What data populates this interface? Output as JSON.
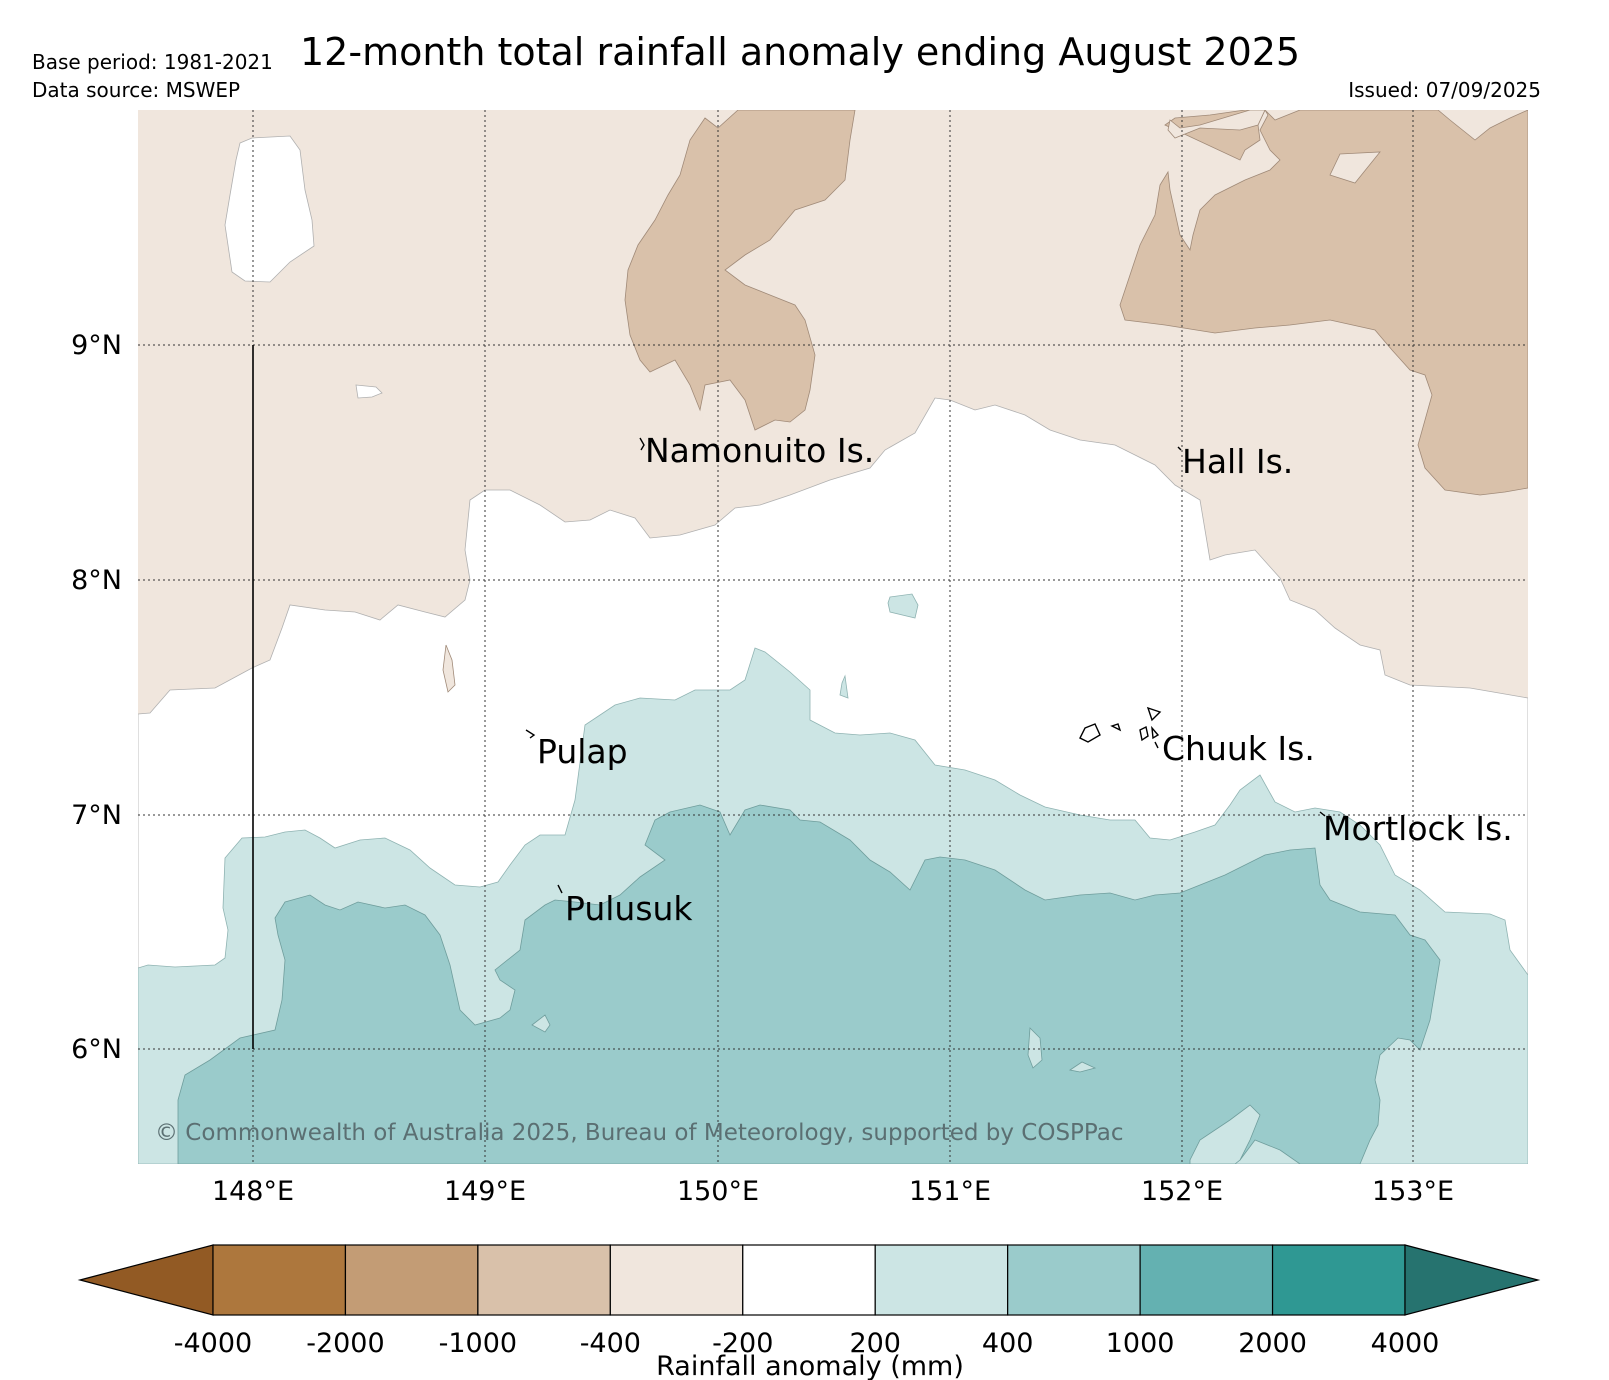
{
  "header": {
    "base_period": "Base period: 1981-2021",
    "data_source": "Data source: MSWEP",
    "title": "12-month total rainfall anomaly ending August 2025",
    "issued": "Issued: 07/09/2025"
  },
  "map": {
    "lon_labels": [
      "148°E",
      "149°E",
      "150°E",
      "151°E",
      "152°E",
      "153°E"
    ],
    "lat_labels": [
      "9°N",
      "8°N",
      "7°N",
      "6°N"
    ],
    "places": [
      {
        "key": "namonuito",
        "name": "Namonuito Is."
      },
      {
        "key": "hall",
        "name": "Hall Is."
      },
      {
        "key": "pulap",
        "name": "Pulap"
      },
      {
        "key": "chuuk",
        "name": "Chuuk Is."
      },
      {
        "key": "mortlock",
        "name": "Mortlock Is."
      },
      {
        "key": "pulusuk",
        "name": "Pulusuk"
      }
    ],
    "copyright": "© Commonwealth of Australia 2025, Bureau of Meteorology, supported by COSPPac"
  },
  "colorbar": {
    "title": "Rainfall anomaly (mm)",
    "tick_labels": [
      "-4000",
      "-2000",
      "-1000",
      "-400",
      "-200",
      "200",
      "400",
      "1000",
      "2000",
      "4000"
    ],
    "colors": [
      "#925a24",
      "#ad773d",
      "#c39c75",
      "#d9c1aa",
      "#f0e6dd",
      "#ffffff",
      "#cce5e4",
      "#9acbcb",
      "#64b1b1",
      "#2f9893",
      "#26736f"
    ]
  }
}
